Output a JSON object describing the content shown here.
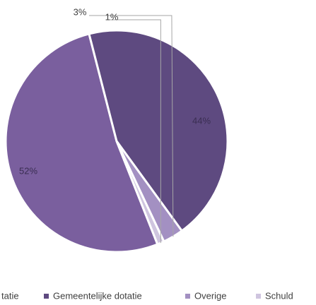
{
  "chart_data": {
    "type": "pie",
    "categories": [
      "tatie",
      "Gemeentelijke dotatie",
      "Overige",
      "Schuld"
    ],
    "values": [
      52,
      44,
      3,
      1
    ],
    "value_labels": [
      "52%",
      "44%",
      "3%",
      "1%"
    ],
    "colors": [
      "#7a5f9e",
      "#5e4a80",
      "#a390c2",
      "#cfc5df"
    ]
  }
}
